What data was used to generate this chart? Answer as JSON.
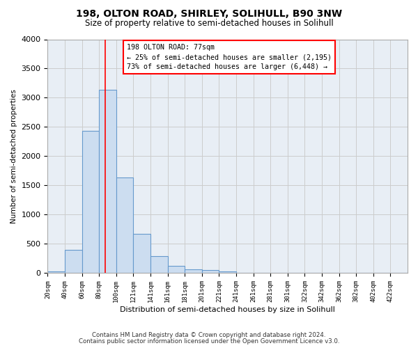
{
  "title": "198, OLTON ROAD, SHIRLEY, SOLIHULL, B90 3NW",
  "subtitle": "Size of property relative to semi-detached houses in Solihull",
  "xlabel": "Distribution of semi-detached houses by size in Solihull",
  "ylabel": "Number of semi-detached properties",
  "footer_line1": "Contains HM Land Registry data © Crown copyright and database right 2024.",
  "footer_line2": "Contains public sector information licensed under the Open Government Licence v3.0.",
  "bar_left_edges": [
    10,
    30,
    50,
    70,
    90,
    110,
    130,
    150,
    170,
    190,
    210,
    230,
    250,
    270,
    290,
    310,
    330,
    350,
    370,
    390,
    410
  ],
  "bar_heights": [
    30,
    400,
    2430,
    3140,
    1640,
    670,
    290,
    120,
    65,
    50,
    30,
    0,
    0,
    0,
    0,
    0,
    0,
    0,
    0,
    0,
    0
  ],
  "bin_width": 20,
  "tick_labels": [
    "20sqm",
    "40sqm",
    "60sqm",
    "80sqm",
    "100sqm",
    "121sqm",
    "141sqm",
    "161sqm",
    "181sqm",
    "201sqm",
    "221sqm",
    "241sqm",
    "261sqm",
    "281sqm",
    "301sqm",
    "322sqm",
    "342sqm",
    "362sqm",
    "382sqm",
    "402sqm",
    "422sqm"
  ],
  "bar_color": "#ccddf0",
  "bar_edge_color": "#6699cc",
  "property_line_x": 77,
  "pct_smaller": 25,
  "n_smaller": 2195,
  "pct_larger": 73,
  "n_larger": 6448,
  "vline_color": "red",
  "grid_color": "#cccccc",
  "background_color": "#e8eef5",
  "ylim": [
    0,
    4000
  ],
  "xlim": [
    10,
    430
  ],
  "ann_text_line1": "198 OLTON ROAD: 77sqm",
  "ann_text_line2": "← 25% of semi-detached houses are smaller (2,195)",
  "ann_text_line3": "73% of semi-detached houses are larger (6,448) →"
}
